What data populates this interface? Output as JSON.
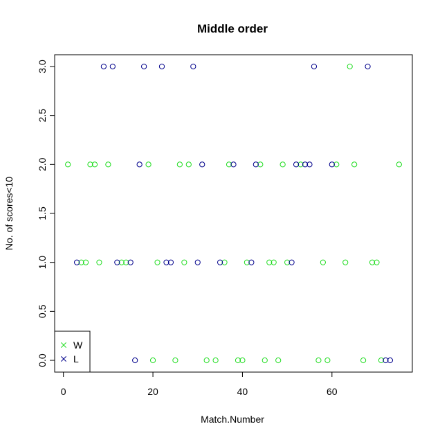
{
  "chart_data": {
    "type": "scatter",
    "title": "Middle order",
    "xlabel": "Match.Number",
    "ylabel": "No. of scores<10",
    "xlim": [
      -1.96,
      77.96
    ],
    "ylim": [
      -0.12,
      3.12
    ],
    "xticks": [
      0,
      20,
      40,
      60
    ],
    "xtick_labels": [
      "0",
      "20",
      "40",
      "60"
    ],
    "yticks": [
      0.0,
      0.5,
      1.0,
      1.5,
      2.0,
      2.5,
      3.0
    ],
    "ytick_labels": [
      "0.0",
      "0.5",
      "1.0",
      "1.5",
      "2.0",
      "2.5",
      "3.0"
    ],
    "grid": false,
    "legend_position": "bottom-left",
    "series": [
      {
        "name": "W",
        "color": "#22dd22",
        "marker": "open-circle",
        "legend_marker": "x",
        "x": [
          1,
          4,
          5,
          6,
          7,
          8,
          10,
          13,
          14,
          19,
          20,
          21,
          25,
          26,
          27,
          28,
          32,
          34,
          36,
          37,
          39,
          40,
          41,
          44,
          45,
          46,
          47,
          48,
          49,
          50,
          53,
          57,
          58,
          59,
          61,
          63,
          64,
          65,
          67,
          69,
          70,
          71,
          75
        ],
        "y": [
          2,
          1,
          1,
          2,
          2,
          1,
          2,
          1,
          1,
          2,
          0,
          1,
          0,
          2,
          1,
          2,
          0,
          0,
          1,
          2,
          0,
          0,
          1,
          2,
          0,
          1,
          1,
          0,
          2,
          1,
          2,
          0,
          1,
          0,
          2,
          1,
          3,
          2,
          0,
          1,
          1,
          0,
          2
        ]
      },
      {
        "name": "L",
        "color": "#00008b",
        "marker": "open-circle",
        "legend_marker": "x",
        "x": [
          3,
          9,
          11,
          12,
          15,
          16,
          17,
          18,
          22,
          23,
          24,
          29,
          30,
          31,
          35,
          38,
          42,
          43,
          51,
          52,
          54,
          55,
          56,
          60,
          68,
          72,
          73
        ],
        "y": [
          1,
          3,
          3,
          1,
          1,
          0,
          2,
          3,
          3,
          1,
          1,
          3,
          1,
          2,
          1,
          2,
          1,
          2,
          1,
          2,
          2,
          2,
          3,
          2,
          3,
          0,
          0
        ]
      }
    ]
  }
}
